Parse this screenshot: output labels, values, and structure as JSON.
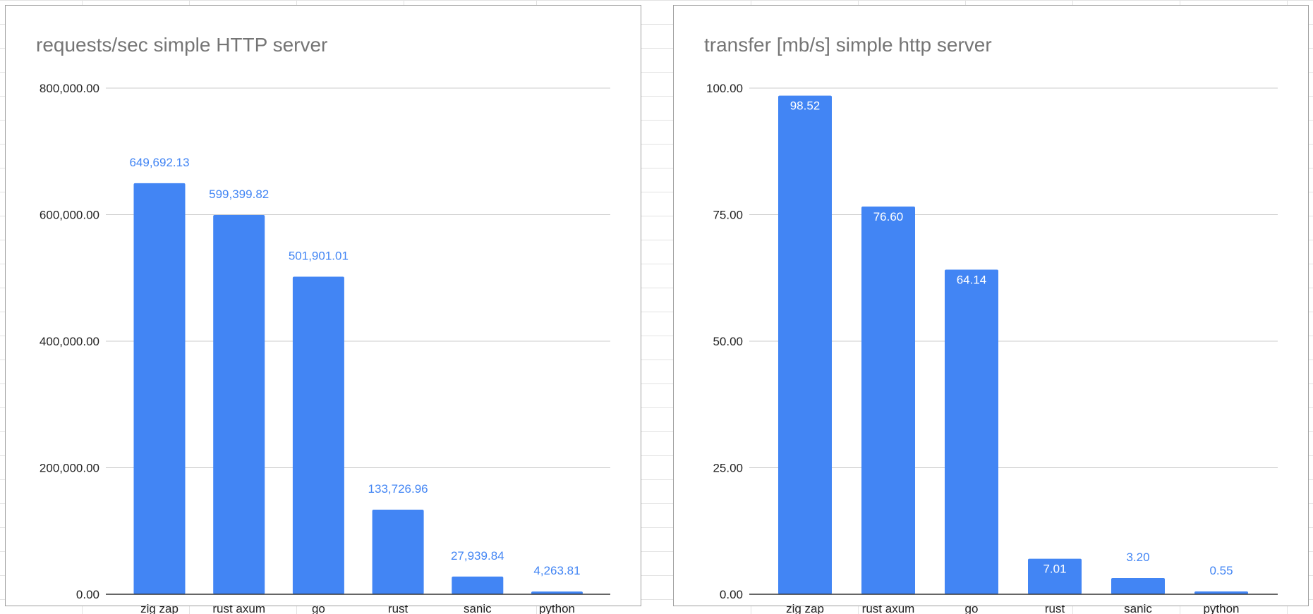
{
  "colors": {
    "bar": "#4285f4",
    "label_outside": "#4285f4",
    "label_inside": "#ffffff",
    "title": "#757575"
  },
  "chart_data": [
    {
      "type": "bar",
      "title": "requests/sec simple HTTP server",
      "categories": [
        "zig zap",
        "rust axum",
        "go",
        "rust",
        "sanic",
        "python"
      ],
      "values": [
        649692.13,
        599399.82,
        501901.01,
        133726.96,
        27939.84,
        4263.81
      ],
      "value_labels": [
        "649,692.13",
        "599,399.82",
        "501,901.01",
        "133,726.96",
        "27,939.84",
        "4,263.81"
      ],
      "ylim": [
        0,
        800000
      ],
      "yticks": [
        "0.00",
        "200,000.00",
        "400,000.00",
        "600,000.00",
        "800,000.00"
      ],
      "label_position": [
        "outside",
        "outside",
        "outside",
        "outside",
        "outside",
        "outside"
      ],
      "grid": true,
      "legend": "none"
    },
    {
      "type": "bar",
      "title": "transfer [mb/s] simple http server",
      "categories": [
        "zig zap",
        "rust axum",
        "go",
        "rust",
        "sanic",
        "python"
      ],
      "values": [
        98.52,
        76.6,
        64.14,
        7.01,
        3.2,
        0.55
      ],
      "value_labels": [
        "98.52",
        "76.60",
        "64.14",
        "7.01",
        "3.20",
        "0.55"
      ],
      "ylim": [
        0,
        100
      ],
      "yticks": [
        "0.00",
        "25.00",
        "50.00",
        "75.00",
        "100.00"
      ],
      "label_position": [
        "inside",
        "inside",
        "inside",
        "inside",
        "outside",
        "outside"
      ],
      "grid": true,
      "legend": "none"
    }
  ]
}
